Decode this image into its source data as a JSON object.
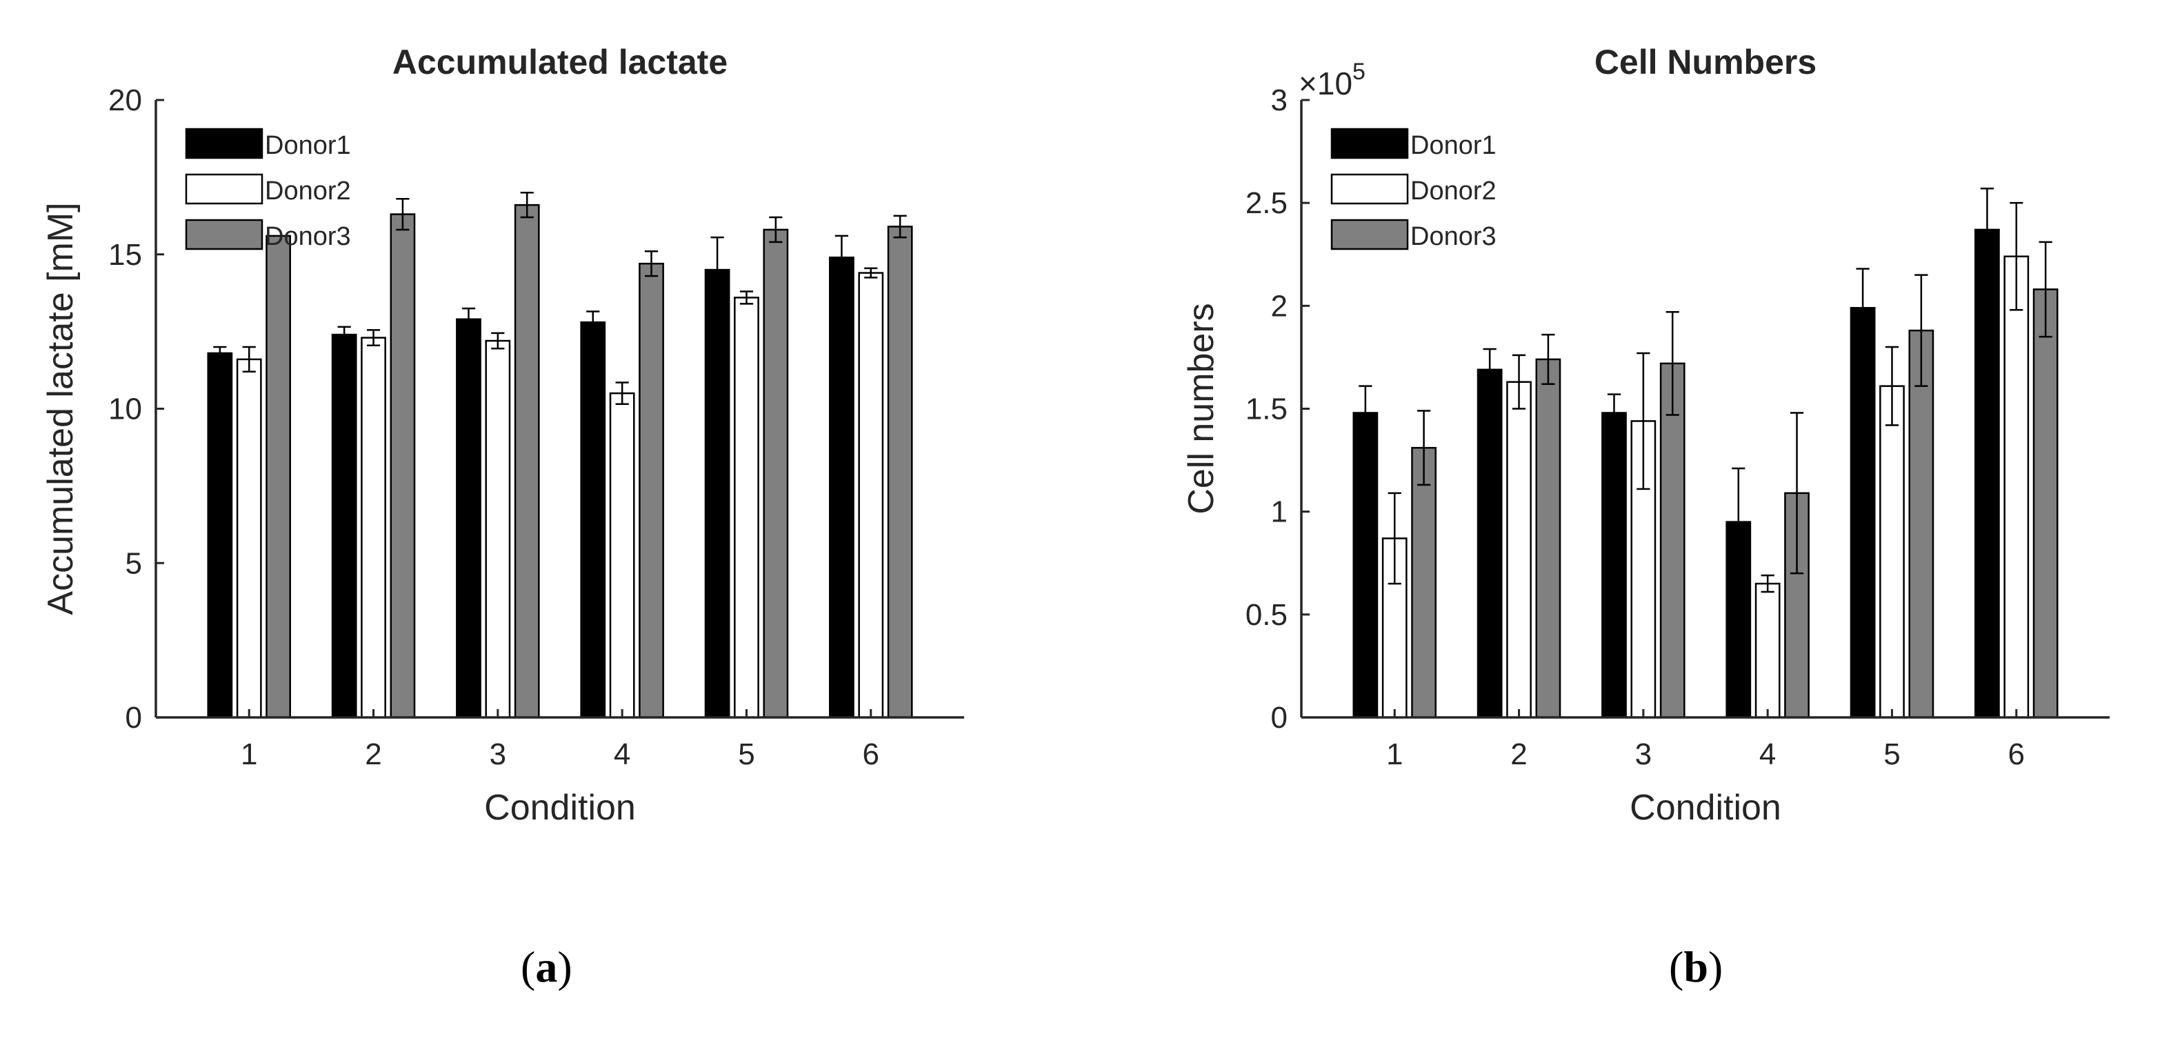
{
  "chart_data": [
    {
      "type": "bar",
      "panel": "a",
      "title": "Accumulated lactate",
      "xlabel": "Condition",
      "ylabel": "Accumulated lactate [mM]",
      "ylim": [
        0,
        20
      ],
      "yticks": [
        0,
        5,
        10,
        15,
        20
      ],
      "categories": [
        "1",
        "2",
        "3",
        "4",
        "5",
        "6"
      ],
      "legend_position": "top-left",
      "series": [
        {
          "name": "Donor1",
          "color": "#000000",
          "values": [
            11.8,
            12.4,
            12.9,
            12.8,
            14.5,
            14.9
          ],
          "errors": [
            0.2,
            0.25,
            0.35,
            0.35,
            1.05,
            0.7
          ]
        },
        {
          "name": "Donor2",
          "color": "#ffffff",
          "values": [
            11.6,
            12.3,
            12.2,
            10.5,
            13.6,
            14.4
          ],
          "errors": [
            0.4,
            0.25,
            0.25,
            0.35,
            0.2,
            0.15
          ]
        },
        {
          "name": "Donor3",
          "color": "#808080",
          "values": [
            15.6,
            16.3,
            16.6,
            14.7,
            15.8,
            15.9
          ],
          "errors": [
            0.0,
            0.5,
            0.4,
            0.4,
            0.4,
            0.35
          ]
        }
      ]
    },
    {
      "type": "bar",
      "panel": "b",
      "title": "Cell Numbers",
      "xlabel": "Condition",
      "ylabel": "Cell numbers",
      "scale_label": "×10",
      "scale_exponent": "5",
      "ylim": [
        0,
        3
      ],
      "yticks": [
        0,
        0.5,
        1,
        1.5,
        2,
        2.5,
        3
      ],
      "categories": [
        "1",
        "2",
        "3",
        "4",
        "5",
        "6"
      ],
      "legend_position": "top-left",
      "series": [
        {
          "name": "Donor1",
          "color": "#000000",
          "values": [
            1.48,
            1.69,
            1.48,
            0.95,
            1.99,
            2.37
          ],
          "errors": [
            0.13,
            0.1,
            0.09,
            0.26,
            0.19,
            0.2
          ]
        },
        {
          "name": "Donor2",
          "color": "#ffffff",
          "values": [
            0.87,
            1.63,
            1.44,
            0.65,
            1.61,
            2.24
          ],
          "errors": [
            0.22,
            0.13,
            0.33,
            0.04,
            0.19,
            0.26
          ]
        },
        {
          "name": "Donor3",
          "color": "#808080",
          "values": [
            1.31,
            1.74,
            1.72,
            1.09,
            1.88,
            2.08
          ],
          "errors": [
            0.18,
            0.12,
            0.25,
            0.39,
            0.27,
            0.23
          ]
        }
      ]
    }
  ],
  "panel_labels": {
    "a": "a",
    "b": "b"
  }
}
